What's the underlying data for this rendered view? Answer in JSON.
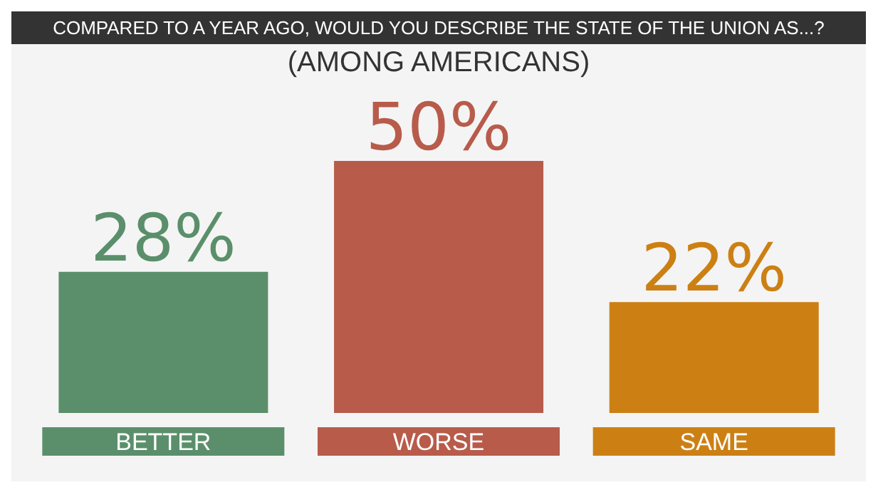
{
  "chart_data": {
    "type": "bar",
    "title": "COMPARED TO A YEAR AGO, WOULD YOU DESCRIBE THE STATE OF THE UNION AS...?",
    "subtitle": "(AMONG AMERICANS)",
    "categories": [
      "BETTER",
      "WORSE",
      "SAME"
    ],
    "values": [
      28,
      50,
      22
    ],
    "colors": [
      "#5b8f6b",
      "#b85b4b",
      "#cc8014"
    ],
    "value_labels": [
      "28%",
      "50%",
      "22%"
    ],
    "grid": false,
    "legend": false
  }
}
